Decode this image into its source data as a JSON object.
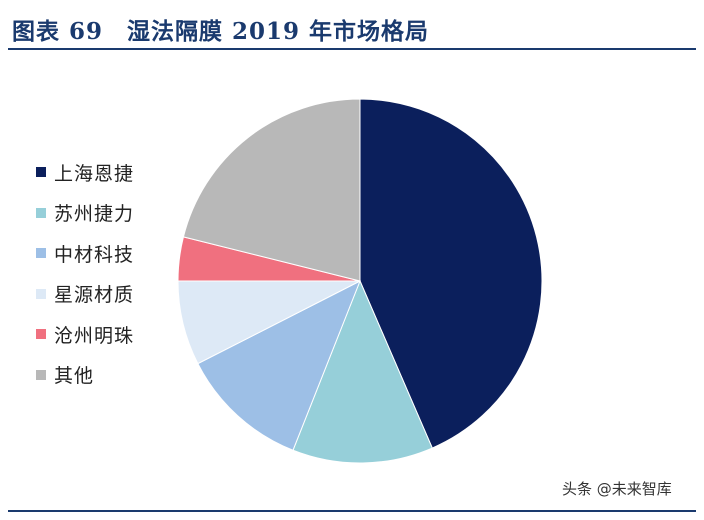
{
  "header": {
    "title": "图表 69　湿法隔膜 2019 年市场格局"
  },
  "chart_data": {
    "type": "pie",
    "title": "",
    "start_angle_deg": 0,
    "direction": "clockwise",
    "legend_position": "left",
    "slices": [
      {
        "label": "上海恩捷",
        "value": 43.5,
        "color": "#0b1f5c"
      },
      {
        "label": "苏州捷力",
        "value": 12.5,
        "color": "#96cfd9"
      },
      {
        "label": "中材科技",
        "value": 11.5,
        "color": "#9dbfe6"
      },
      {
        "label": "星源材质",
        "value": 7.5,
        "color": "#dde9f6"
      },
      {
        "label": "沧州明珠",
        "value": 3.9,
        "color": "#f0707f"
      },
      {
        "label": "其他",
        "value": 21.1,
        "color": "#b8b8b8"
      }
    ]
  },
  "watermark": {
    "text": "头条 @未来智库"
  }
}
